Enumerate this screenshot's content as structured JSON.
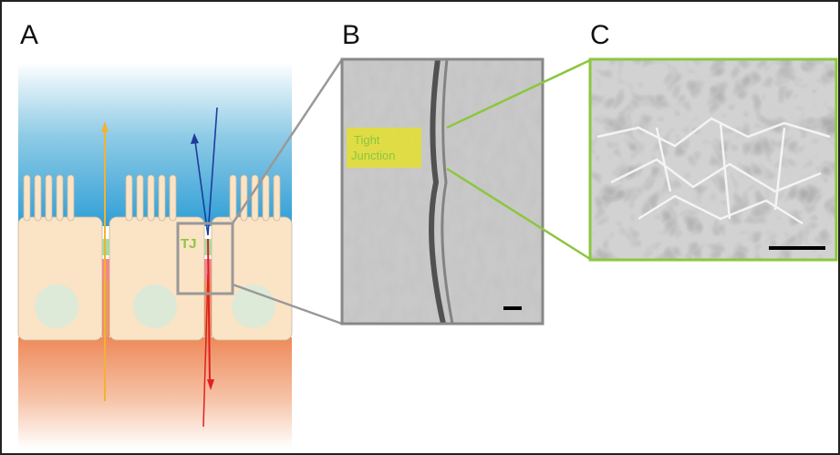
{
  "panels": [
    {
      "label": "A",
      "annotation": "TJ"
    },
    {
      "label": "B",
      "annotation": [
        "Tight",
        "Junction"
      ]
    },
    {
      "label": "C"
    }
  ]
}
